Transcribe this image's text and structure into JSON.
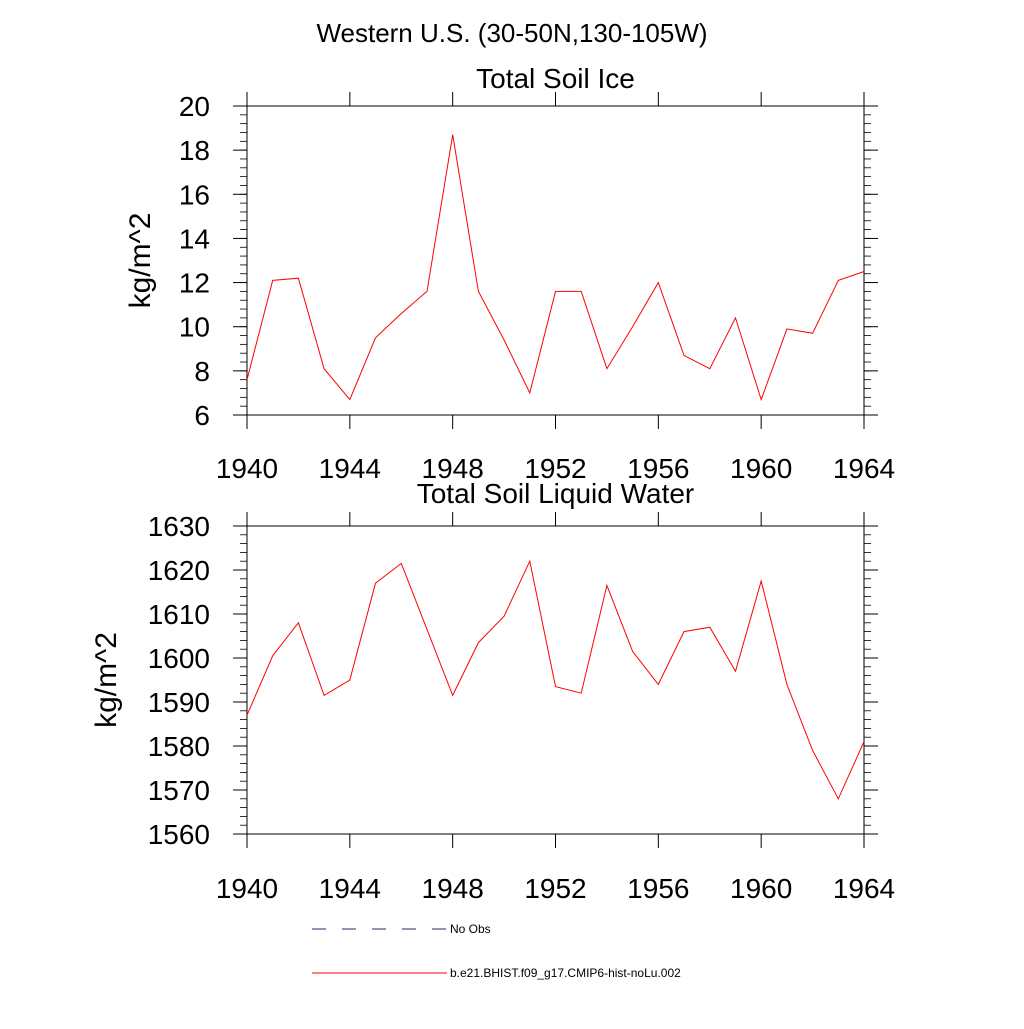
{
  "figure_title": "Western U.S. (30-50N,130-105W)",
  "legend": {
    "obs_label": "No Obs",
    "model_label": "b.e21.BHIST.f09_g17.CMIP6-hist-noLu.002",
    "obs_color": "#1b2a6b",
    "model_color": "#ff0000"
  },
  "chart_data": [
    {
      "type": "line",
      "title": "Total Soil Ice",
      "ylabel": "kg/m^2",
      "xlabel": "",
      "xlim": [
        1940,
        1964
      ],
      "ylim": [
        6,
        20
      ],
      "x_ticks": [
        1940,
        1944,
        1948,
        1952,
        1956,
        1960,
        1964
      ],
      "x_tick_labels": [
        "1940",
        "1944",
        "1948",
        "1952",
        "1956",
        "1960",
        "1964"
      ],
      "y_ticks": [
        6,
        8,
        10,
        12,
        14,
        16,
        18,
        20
      ],
      "y_tick_labels": [
        "6",
        "8",
        "10",
        "12",
        "14",
        "16",
        "18",
        "20"
      ],
      "grid": false,
      "series": [
        {
          "name": "b.e21.BHIST.f09_g17.CMIP6-hist-noLu.002",
          "color": "#ff0000",
          "x": [
            1940,
            1941,
            1942,
            1943,
            1944,
            1945,
            1946,
            1947,
            1948,
            1949,
            1950,
            1951,
            1952,
            1953,
            1954,
            1955,
            1956,
            1957,
            1958,
            1959,
            1960,
            1961,
            1962,
            1963,
            1964
          ],
          "y": [
            7.6,
            12.1,
            12.2,
            8.1,
            6.7,
            9.5,
            10.6,
            11.6,
            18.7,
            11.6,
            9.4,
            7.0,
            11.6,
            11.6,
            8.1,
            10.0,
            12.0,
            8.7,
            8.1,
            10.4,
            6.7,
            9.9,
            9.7,
            12.1,
            12.5
          ]
        }
      ]
    },
    {
      "type": "line",
      "title": "Total Soil Liquid Water",
      "ylabel": "kg/m^2",
      "xlabel": "",
      "xlim": [
        1940,
        1964
      ],
      "ylim": [
        1560,
        1630
      ],
      "x_ticks": [
        1940,
        1944,
        1948,
        1952,
        1956,
        1960,
        1964
      ],
      "x_tick_labels": [
        "1940",
        "1944",
        "1948",
        "1952",
        "1956",
        "1960",
        "1964"
      ],
      "y_ticks": [
        1560,
        1570,
        1580,
        1590,
        1600,
        1610,
        1620,
        1630
      ],
      "y_tick_labels": [
        "1560",
        "1570",
        "1580",
        "1590",
        "1600",
        "1610",
        "1620",
        "1630"
      ],
      "grid": false,
      "series": [
        {
          "name": "b.e21.BHIST.f09_g17.CMIP6-hist-noLu.002",
          "color": "#ff0000",
          "x": [
            1940,
            1941,
            1942,
            1943,
            1944,
            1945,
            1946,
            1947,
            1948,
            1949,
            1950,
            1951,
            1952,
            1953,
            1954,
            1955,
            1956,
            1957,
            1958,
            1959,
            1960,
            1961,
            1962,
            1963,
            1964
          ],
          "y": [
            1587,
            1600.5,
            1608,
            1591.5,
            1595,
            1617,
            1621.5,
            1606.5,
            1591.5,
            1603.5,
            1609.5,
            1622,
            1593.5,
            1592,
            1616.5,
            1601.5,
            1594,
            1606,
            1607,
            1597,
            1617.5,
            1594,
            1579,
            1568,
            1581
          ]
        }
      ]
    }
  ]
}
